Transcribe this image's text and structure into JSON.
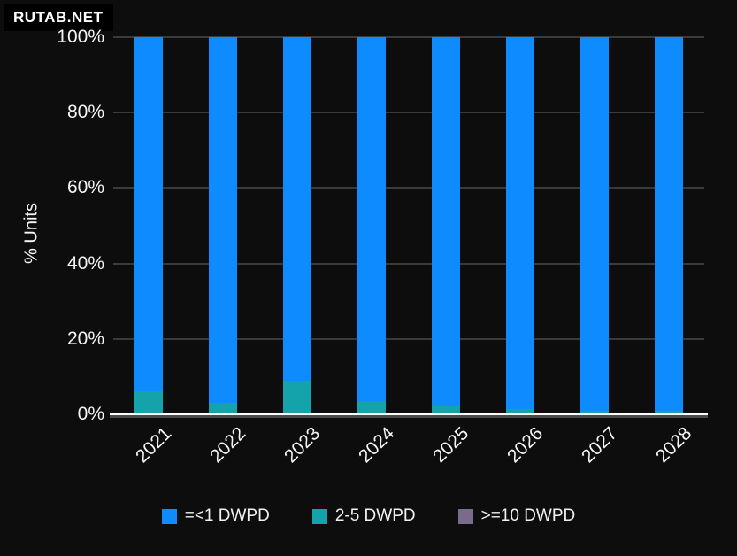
{
  "watermark": "RUTAB.NET",
  "colors": {
    "background": "#0d0d0d",
    "bar_blue": "#0d8bff",
    "bar_teal": "#14a3ab",
    "bar_purple": "#7a6b8c",
    "gridline": "#3a3a3a",
    "axis_line": "#ffffff",
    "text": "#f5f5f5"
  },
  "chart_data": {
    "type": "bar",
    "stacked": true,
    "title": "",
    "xlabel": "",
    "ylabel": "% Units",
    "categories": [
      "2021",
      "2022",
      "2023",
      "2024",
      "2025",
      "2026",
      "2027",
      "2028"
    ],
    "series": [
      {
        "name": "=<1 DWPD",
        "color": "#0d8bff",
        "values": [
          94,
          97,
          91,
          96.5,
          98,
          98.5,
          99,
          99
        ]
      },
      {
        "name": "2-5 DWPD",
        "color": "#14a3ab",
        "values": [
          6,
          3,
          9,
          3.5,
          2,
          1.5,
          1,
          1
        ]
      },
      {
        "name": ">=10 DWPD",
        "color": "#7a6b8c",
        "values": [
          0,
          0,
          0,
          0,
          0,
          0,
          0,
          0
        ]
      }
    ],
    "stack_bottom_to_top": [
      "2-5 DWPD",
      "=<1 DWPD",
      ">=10 DWPD"
    ],
    "y_ticks": [
      "0%",
      "20%",
      "40%",
      "60%",
      "80%",
      "100%"
    ],
    "ylim": [
      0,
      100
    ],
    "grid": true,
    "legend_position": "bottom"
  }
}
